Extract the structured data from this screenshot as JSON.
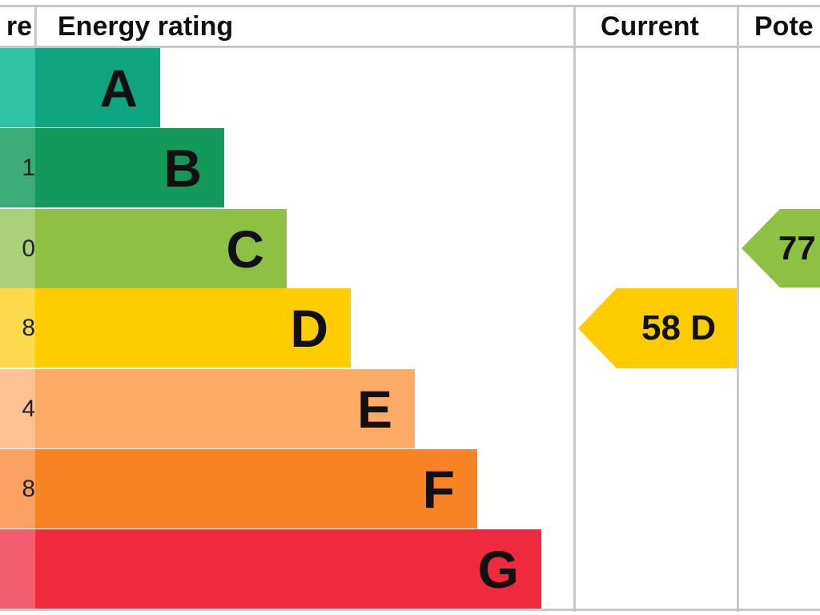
{
  "chart_data": {
    "type": "bar",
    "header": {
      "score_fragment": "re",
      "energy_rating": "Energy rating",
      "current": "Current",
      "potential_fragment": "Pote"
    },
    "bands": [
      {
        "letter": "A",
        "score_fragment": "",
        "color": "#0fa57f",
        "left_color": "#2fc3a6"
      },
      {
        "letter": "B",
        "score_fragment": "1",
        "color": "#13995a",
        "left_color": "#3dab75"
      },
      {
        "letter": "C",
        "score_fragment": "0",
        "color": "#8dc043",
        "left_color": "#a9d078"
      },
      {
        "letter": "D",
        "score_fragment": "8",
        "color": "#ffcc00",
        "left_color": "#ffd94c"
      },
      {
        "letter": "E",
        "score_fragment": "4",
        "color": "#fcaa65",
        "left_color": "#fdc192"
      },
      {
        "letter": "F",
        "score_fragment": "8",
        "color": "#f78322",
        "left_color": "#f9a263"
      },
      {
        "letter": "G",
        "score_fragment": "",
        "color": "#ee2a3c",
        "left_color": "#f25c6e"
      }
    ],
    "current": {
      "label": "58 D",
      "score": 58,
      "band": "D",
      "color": "#ffcc00"
    },
    "potential": {
      "label": "77",
      "score": 77,
      "band": "C",
      "color": "#8dc043"
    }
  }
}
